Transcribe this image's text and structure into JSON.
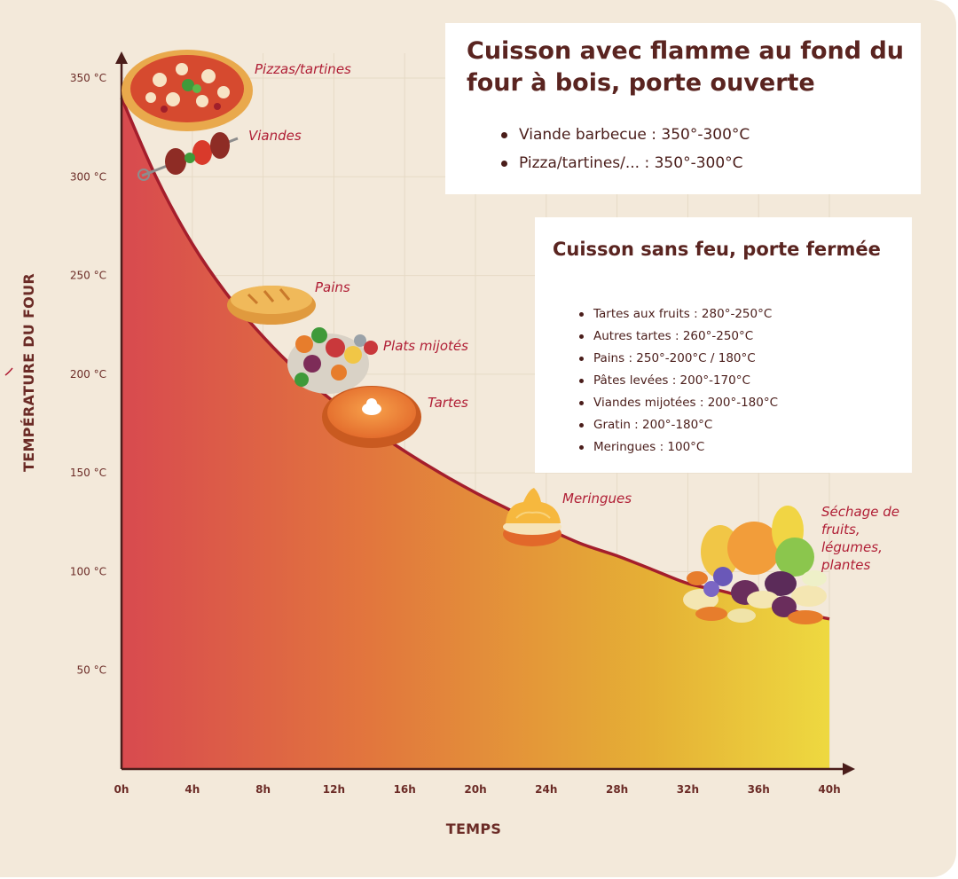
{
  "chart_data": {
    "type": "area",
    "title": "",
    "xlabel": "TEMPS",
    "ylabel": "TEMPÉRATURE DU FOUR",
    "x_ticks": [
      "0h",
      "4h",
      "8h",
      "12h",
      "16h",
      "20h",
      "24h",
      "28h",
      "32h",
      "36h",
      "40h"
    ],
    "y_ticks": [
      "50 °C",
      "100 °C",
      "150 °C",
      "200 °C",
      "250 °C",
      "300 °C",
      "350 °C"
    ],
    "xlim": [
      0,
      40
    ],
    "ylim": [
      0,
      350
    ],
    "grid": true,
    "gradient_colors": [
      "#d84a4f",
      "#e2763d",
      "#e5b035",
      "#eed940"
    ],
    "line_color": "#a41e2c",
    "series": [
      {
        "x": [
          0,
          2,
          4,
          6,
          8,
          10,
          12,
          14,
          16,
          18,
          20,
          22,
          24,
          26,
          28,
          30,
          32,
          34,
          36,
          38,
          40
        ],
        "y": [
          340,
          299,
          266,
          240,
          219,
          201,
          186,
          173,
          161,
          150,
          140,
          131,
          122,
          114,
          108,
          101,
          94,
          90,
          85,
          80,
          76
        ]
      }
    ],
    "annotations": [
      {
        "label": "Pizzas/tartines",
        "icon": "pizza-icon",
        "x": 3.5,
        "y": 342
      },
      {
        "label": "Viandes",
        "icon": "skewer-icon",
        "x": 3.5,
        "y": 308
      },
      {
        "label": "Pains",
        "icon": "bread-icon",
        "x": 8,
        "y": 235
      },
      {
        "label": "Plats mijotés",
        "icon": "stew-icon",
        "x": 11.5,
        "y": 212
      },
      {
        "label": "Tartes",
        "icon": "pie-icon",
        "x": 14,
        "y": 180
      },
      {
        "label": "Meringues",
        "icon": "meringue-icon",
        "x": 23,
        "y": 125
      },
      {
        "label": "Séchage de\nfruits,\nlégumes,\nplantes",
        "icon": "fruits-icon",
        "x": 35,
        "y": 95
      }
    ]
  },
  "boxes": {
    "open_fire": {
      "title": "Cuisson avec flamme au fond du four à bois, porte ouverte",
      "items": [
        "Viande barbecue : 350°-300°C",
        "Pizza/tartines/... : 350°-300°C"
      ]
    },
    "no_fire": {
      "title": "Cuisson sans feu, porte fermée",
      "items": [
        "Tartes aux fruits : 280°-250°C",
        "Autres tartes : 260°-250°C",
        "Pains : 250°-200°C / 180°C",
        "Pâtes levées : 200°-170°C",
        "Viandes mijotées : 200°-180°C",
        "Gratin : 200°-180°C",
        "Meringues : 100°C"
      ]
    }
  }
}
